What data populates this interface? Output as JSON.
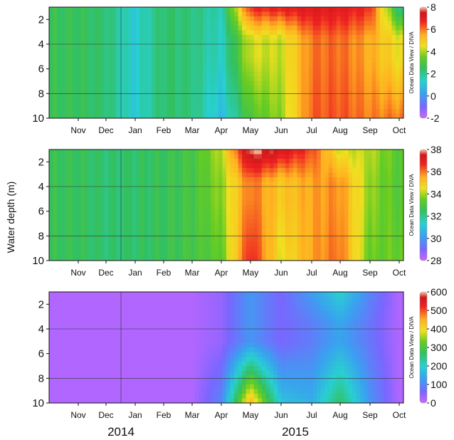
{
  "figure": {
    "y_axis_label": "Water depth (m)",
    "year_labels": [
      "2014",
      "2015"
    ],
    "watermark": "Ocean Data View / DIVA"
  },
  "chart_data": [
    {
      "type": "heatmap",
      "title": "",
      "xlabel": "",
      "ylabel": "Water depth (m)",
      "x_categories": [
        "Nov",
        "Dec",
        "Jan",
        "Feb",
        "Mar",
        "Apr",
        "May",
        "Jun",
        "Jul",
        "Aug",
        "Sep",
        "Oct"
      ],
      "y_ticks": [
        "2",
        "4",
        "6",
        "8",
        "10"
      ],
      "ylim": [
        10,
        1
      ],
      "colorbar": {
        "min": -2,
        "max": 8,
        "ticks": [
          "8",
          "6",
          "4",
          "2",
          "0",
          "-2"
        ]
      },
      "month_values": [
        2.6,
        2.3,
        1.2,
        2.4,
        2.2,
        1.4,
        4.3,
        4.2,
        6.0,
        6.1,
        5.5,
        4.5
      ],
      "surface_boost": [
        0,
        0,
        0,
        0,
        0,
        0.2,
        2.5,
        2.8,
        1.2,
        1.0,
        1.2,
        -2.5
      ],
      "deep_shift": [
        0,
        0,
        0,
        0,
        0,
        -0.6,
        -1.2,
        -0.4,
        0.2,
        0.2,
        0.4,
        1.5
      ]
    },
    {
      "type": "heatmap",
      "title": "",
      "xlabel": "",
      "ylabel": "Water depth (m)",
      "x_categories": [
        "Nov",
        "Dec",
        "Jan",
        "Feb",
        "Mar",
        "Apr",
        "May",
        "Jun",
        "Jul",
        "Aug",
        "Sep",
        "Oct"
      ],
      "y_ticks": [
        "2",
        "4",
        "6",
        "8",
        "10"
      ],
      "ylim": [
        10,
        1
      ],
      "colorbar": {
        "min": 28,
        "max": 38,
        "ticks": [
          "38",
          "36",
          "34",
          "32",
          "30",
          "28"
        ]
      },
      "month_values": [
        32.6,
        32.3,
        32.4,
        32.6,
        32.9,
        33.8,
        36.1,
        35.0,
        35.6,
        35.8,
        33.8,
        33.2
      ],
      "surface_boost": [
        0,
        0,
        0,
        0,
        0,
        0.3,
        2.0,
        2.4,
        0.8,
        -1.5,
        0.3,
        0
      ],
      "deep_shift": [
        0,
        0,
        0,
        0,
        0,
        -0.5,
        0.8,
        -0.6,
        0,
        0.3,
        -0.4,
        0.3
      ]
    },
    {
      "type": "heatmap",
      "title": "",
      "xlabel": "",
      "ylabel": "Water depth (m)",
      "x_categories": [
        "Nov",
        "Dec",
        "Jan",
        "Feb",
        "Mar",
        "Apr",
        "May",
        "Jun",
        "Jul",
        "Aug",
        "Sep",
        "Oct"
      ],
      "y_ticks": [
        "2",
        "4",
        "6",
        "8",
        "10"
      ],
      "ylim": [
        10,
        1
      ],
      "colorbar": {
        "min": 0,
        "max": 600,
        "ticks": [
          "600",
          "500",
          "400",
          "300",
          "200",
          "100",
          "0"
        ]
      },
      "month_values": [
        20,
        20,
        20,
        20,
        20,
        40,
        120,
        60,
        90,
        140,
        80,
        20
      ],
      "surface_boost": [
        0,
        0,
        0,
        0,
        0,
        0,
        0,
        0,
        40,
        60,
        20,
        0
      ],
      "deep_shift": [
        0,
        0,
        0,
        0,
        0,
        60,
        330,
        120,
        60,
        130,
        40,
        0
      ]
    }
  ]
}
